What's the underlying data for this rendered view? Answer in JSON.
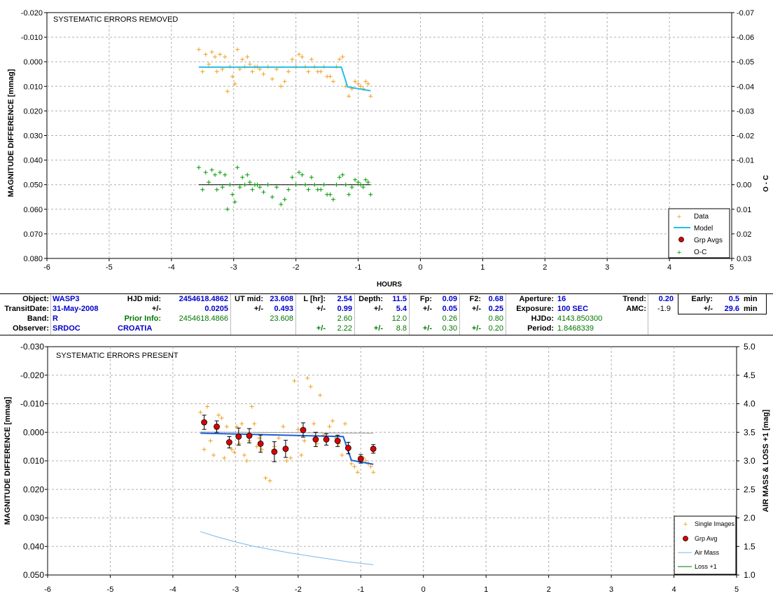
{
  "chart_data": [
    {
      "type": "scatter",
      "title": "SYSTEMATIC ERRORS REMOVED",
      "xlabel": "HOURS",
      "ylabel": "MAGNITUDE DIFFERENCE [mmag]",
      "y2label": "O - C",
      "xlim": [
        -6,
        5
      ],
      "ylim": [
        -0.02,
        0.08
      ],
      "y2lim": [
        -0.07,
        0.03
      ],
      "grid": true,
      "legend": "bottom-right",
      "xticks": [
        "-6",
        "-5",
        "-4",
        "-3",
        "-2",
        "-1",
        "0",
        "1",
        "2",
        "3",
        "4",
        "5"
      ],
      "yticks": [
        "-0.020",
        "-0.010",
        "0.000",
        "0.010",
        "0.020",
        "0.030",
        "0.040",
        "0.050",
        "0.060",
        "0.070",
        "0.080"
      ],
      "y2ticks": [
        "-0.07",
        "-0.06",
        "-0.05",
        "-0.04",
        "-0.03",
        "-0.02",
        "-0.01",
        "0.00",
        "0.01",
        "0.02",
        "0.03"
      ],
      "legend_entries": [
        "Data",
        "Model",
        "Grp Avgs",
        "O-C"
      ],
      "colors": {
        "data": "#f0a020",
        "model": "#22c0e8",
        "grp": "#dd0000",
        "oc": "#009900",
        "zero": "#000000"
      },
      "series": [
        {
          "name": "Data",
          "x": [
            -3.56,
            -3.5,
            -3.45,
            -3.4,
            -3.35,
            -3.3,
            -3.27,
            -3.22,
            -3.18,
            -3.14,
            -3.1,
            -3.06,
            -3.02,
            -2.98,
            -2.94,
            -2.9,
            -2.86,
            -2.82,
            -2.78,
            -2.74,
            -2.7,
            -2.66,
            -2.62,
            -2.58,
            -2.52,
            -2.45,
            -2.38,
            -2.31,
            -2.24,
            -2.18,
            -2.12,
            -2.06,
            -2.0,
            -1.95,
            -1.9,
            -1.85,
            -1.8,
            -1.75,
            -1.7,
            -1.65,
            -1.6,
            -1.55,
            -1.5,
            -1.45,
            -1.4,
            -1.35,
            -1.3,
            -1.25,
            -1.2,
            -1.15,
            -1.1,
            -1.05,
            -1.0,
            -0.96,
            -0.92,
            -0.88,
            -0.84,
            -0.8
          ],
          "y": [
            -0.005,
            0.004,
            -0.003,
            0.001,
            -0.004,
            -0.002,
            0.004,
            -0.003,
            0.003,
            -0.002,
            0.012,
            0.002,
            0.006,
            0.009,
            -0.005,
            0.003,
            -0.001,
            0.002,
            -0.002,
            0.001,
            0.004,
            0.002,
            0.002,
            0.003,
            0.005,
            0.002,
            0.007,
            0.003,
            0.01,
            0.008,
            0.004,
            -0.001,
            0.002,
            -0.003,
            -0.002,
            0.002,
            0.004,
            -0.001,
            0.002,
            0.004,
            0.004,
            0.002,
            0.006,
            0.006,
            0.008,
            0.002,
            -0.001,
            -0.002,
            0.01,
            0.014,
            0.011,
            0.008,
            0.009,
            0.01,
            0.011,
            0.008,
            0.009,
            0.014
          ]
        },
        {
          "name": "Model",
          "x": [
            -3.56,
            -1.27,
            -1.17,
            -0.8
          ],
          "y": [
            0.0022,
            0.0022,
            0.0102,
            0.0118
          ]
        },
        {
          "name": "O-C",
          "x": [
            -3.56,
            -3.5,
            -3.45,
            -3.4,
            -3.35,
            -3.3,
            -3.27,
            -3.22,
            -3.18,
            -3.14,
            -3.1,
            -3.06,
            -3.02,
            -2.98,
            -2.94,
            -2.9,
            -2.86,
            -2.82,
            -2.78,
            -2.74,
            -2.7,
            -2.66,
            -2.62,
            -2.58,
            -2.52,
            -2.45,
            -2.38,
            -2.31,
            -2.24,
            -2.18,
            -2.12,
            -2.06,
            -2.0,
            -1.95,
            -1.9,
            -1.85,
            -1.8,
            -1.75,
            -1.7,
            -1.65,
            -1.6,
            -1.55,
            -1.5,
            -1.45,
            -1.4,
            -1.35,
            -1.3,
            -1.25,
            -1.2,
            -1.15,
            -1.1,
            -1.05,
            -1.0,
            -0.96,
            -0.92,
            -0.88,
            -0.84,
            -0.8
          ],
          "y": [
            -0.007,
            0.002,
            -0.005,
            -0.001,
            -0.006,
            -0.004,
            0.002,
            -0.005,
            0.001,
            -0.004,
            0.01,
            0.0,
            0.004,
            0.007,
            -0.007,
            0.001,
            -0.003,
            0.0,
            -0.004,
            -0.001,
            0.002,
            0.0,
            0.0,
            0.001,
            0.003,
            0.0,
            0.005,
            0.001,
            0.008,
            0.006,
            0.002,
            -0.003,
            0.0,
            -0.005,
            -0.004,
            0.0,
            0.002,
            -0.003,
            0.0,
            0.002,
            0.002,
            0.0,
            0.004,
            0.004,
            0.006,
            0.0,
            -0.003,
            -0.004,
            0.0,
            0.004,
            0.001,
            -0.002,
            -0.001,
            0.0,
            0.001,
            -0.002,
            -0.001,
            0.004
          ]
        }
      ],
      "oc_zero_line": {
        "x": [
          -3.56,
          -0.8
        ],
        "y": [
          0.0,
          0.0
        ]
      }
    },
    {
      "type": "scatter",
      "title": "SYSTEMATIC ERRORS PRESENT",
      "ylabel": "MAGNITUDE DIFFERENCE [mmag]",
      "y2label": "AIR MASS & LOSS +1 [mag]",
      "xlim": [
        -6,
        5
      ],
      "ylim": [
        -0.03,
        0.05
      ],
      "y2lim": [
        1.0,
        5.0
      ],
      "grid": true,
      "legend": "bottom-right",
      "xticks": [
        "-6",
        "-5",
        "-4",
        "-3",
        "-2",
        "-1",
        "0",
        "1",
        "2",
        "3",
        "4",
        "5"
      ],
      "yticks": [
        "-0.030",
        "-0.020",
        "-0.010",
        "0.000",
        "0.010",
        "0.020",
        "0.030",
        "0.040",
        "0.050"
      ],
      "y2ticks": [
        "5.0",
        "4.5",
        "4.0",
        "3.5",
        "3.0",
        "2.5",
        "2.0",
        "1.5",
        "1.0"
      ],
      "legend_entries": [
        "Single Images",
        "Grp Avg",
        "Air Mass",
        "Loss +1"
      ],
      "colors": {
        "single": "#f0a020",
        "grp": "#dd0000",
        "model": "#1a5fd8",
        "airmass": "#7ab8e8",
        "loss": "#007700",
        "ref": "#999999"
      },
      "series": [
        {
          "name": "Single Images",
          "x": [
            -3.56,
            -3.5,
            -3.45,
            -3.4,
            -3.35,
            -3.3,
            -3.27,
            -3.22,
            -3.18,
            -3.14,
            -3.1,
            -3.06,
            -3.02,
            -2.98,
            -2.94,
            -2.9,
            -2.86,
            -2.82,
            -2.78,
            -2.74,
            -2.7,
            -2.66,
            -2.62,
            -2.58,
            -2.52,
            -2.45,
            -2.38,
            -2.31,
            -2.24,
            -2.18,
            -2.12,
            -2.06,
            -2.0,
            -1.95,
            -1.9,
            -1.85,
            -1.8,
            -1.75,
            -1.7,
            -1.65,
            -1.6,
            -1.55,
            -1.5,
            -1.45,
            -1.4,
            -1.35,
            -1.3,
            -1.25,
            -1.2,
            -1.15,
            -1.1,
            -1.05,
            -1.0,
            -0.96,
            -0.92,
            -0.88,
            -0.84,
            -0.8
          ],
          "y": [
            -0.007,
            0.006,
            -0.009,
            0.003,
            0.008,
            -0.001,
            -0.006,
            -0.005,
            0.009,
            -0.002,
            0.003,
            0.006,
            0.007,
            -0.002,
            0.004,
            -0.003,
            0.008,
            0.01,
            0.003,
            -0.009,
            -0.003,
            0.005,
            0.002,
            0.006,
            0.016,
            0.017,
            0.005,
            0.002,
            -0.002,
            0.01,
            0.009,
            -0.018,
            -0.001,
            0.008,
            0.003,
            -0.019,
            -0.016,
            -0.003,
            0.004,
            -0.013,
            0.001,
            0.003,
            -0.002,
            -0.004,
            0.002,
            0.004,
            0.008,
            -0.003,
            0.006,
            0.011,
            0.012,
            0.014,
            0.01,
            0.009,
            0.01,
            0.011,
            0.012,
            0.014
          ]
        },
        {
          "name": "Grp Avg",
          "x": [
            -3.5,
            -3.3,
            -3.1,
            -2.95,
            -2.78,
            -2.6,
            -2.38,
            -2.2,
            -1.92,
            -1.72,
            -1.55,
            -1.37,
            -1.2,
            -1.0,
            -0.8
          ],
          "y": [
            -0.0035,
            -0.002,
            0.0035,
            0.0015,
            0.0012,
            0.004,
            0.0068,
            0.0058,
            -0.0008,
            0.0025,
            0.0025,
            0.003,
            0.0055,
            0.0093,
            0.0058
          ],
          "err": [
            0.0025,
            0.002,
            0.002,
            0.003,
            0.0025,
            0.003,
            0.0035,
            0.003,
            0.0025,
            0.0025,
            0.002,
            0.002,
            0.002,
            0.0015,
            0.0015
          ]
        },
        {
          "name": "Model",
          "x": [
            -3.56,
            -1.28,
            -1.15,
            -0.8
          ],
          "y": [
            0.0003,
            0.0015,
            0.0098,
            0.0112
          ]
        },
        {
          "name": "Reference",
          "x": [
            -3.56,
            -0.8
          ],
          "y": [
            -0.0001,
            0.0003
          ]
        },
        {
          "name": "Air Mass",
          "x": [
            -3.56,
            -3.3,
            -3.0,
            -2.7,
            -2.4,
            -2.1,
            -1.8,
            -1.5,
            -1.2,
            -0.8
          ],
          "y": [
            1.76,
            1.67,
            1.58,
            1.5,
            1.44,
            1.38,
            1.33,
            1.28,
            1.23,
            1.18
          ]
        }
      ]
    }
  ],
  "info": {
    "row1": {
      "object_label": "Object:",
      "object": "WASP3",
      "hjd_mid_label": "HJD mid:",
      "hjd_mid": "2454618.4862",
      "ut_mid_label": "UT mid:",
      "ut_mid": "23.608",
      "l_label": "L [hr]:",
      "l": "2.54",
      "depth_label": "Depth:",
      "depth": "11.5",
      "fp_label": "Fp:",
      "fp": "0.09",
      "f2_label": "F2:",
      "f2": "0.68",
      "aperture_label": "Aperture:",
      "aperture": "16",
      "trend_label": "Trend:",
      "trend": "0.20",
      "early_label": "Early:",
      "early": "0.5",
      "early_unit": "min"
    },
    "row2": {
      "transit_label": "TransitDate:",
      "transit": "31-May-2008",
      "pm1": "+/-",
      "hjd_err": "0.0205",
      "pm2": "+/-",
      "ut_err": "0.493",
      "pm3": "+/-",
      "l_err": "0.99",
      "pm4": "+/-",
      "depth_err": "5.4",
      "pm5": "+/-",
      "fp_err": "0.05",
      "pm6": "+/-",
      "f2_err": "0.25",
      "exposure_label": "Exposure:",
      "exposure": "100 SEC",
      "amc_label": "AMC:",
      "amc": "-1.9",
      "pm7": "+/-",
      "early_err": "29.6",
      "early_err_unit": "min"
    },
    "row3": {
      "band_label": "Band:",
      "band": "R",
      "prior_label": "Prior Info:",
      "prior_hjd": "2454618.4866",
      "prior_ut": "23.608",
      "prior_l": "2.60",
      "prior_depth": "12.0",
      "prior_fp": "0.26",
      "prior_f2": "0.80",
      "hjdo_label": "HJDo:",
      "hjdo": "4143.850300"
    },
    "row4": {
      "observer_label": "Observer:",
      "observer": "SRDOC",
      "location": "CROATIA",
      "pm1": "+/-",
      "prior_l_err": "2.22",
      "pm2": "+/-",
      "prior_depth_err": "8.8",
      "pm3": "+/-",
      "prior_fp_err": "0.30",
      "pm4": "+/-",
      "prior_f2_err": "0.20",
      "period_label": "Period:",
      "period": "1.8468339"
    }
  }
}
